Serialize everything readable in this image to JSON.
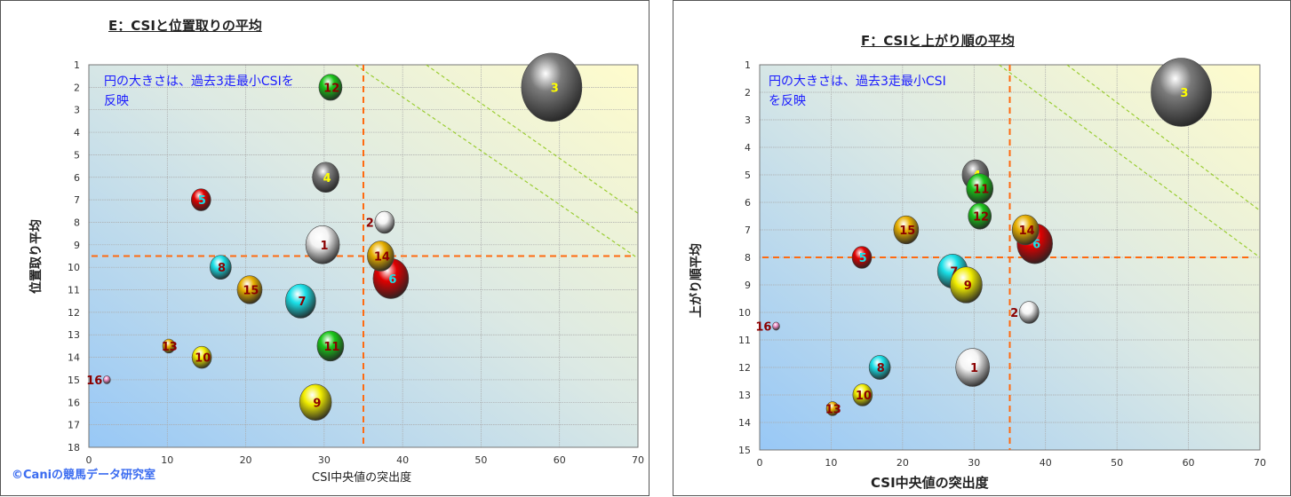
{
  "copyright": "©Caniの競馬データ研究室",
  "colors": {
    "white": "#f4f4f4",
    "gray": "#7a7a7a",
    "red": "#e00000",
    "cyan": "#19e0e8",
    "yellow": "#f2ee00",
    "green": "#19c619",
    "orange": "#e8b000",
    "pink": "#f090c8",
    "threshold": "#ff6a10",
    "diagonal": "#9acd32",
    "note": "#1a1aff"
  },
  "chart_data": [
    {
      "type": "scatter",
      "title": "E：CSIと位置取りの平均",
      "xlabel": "CSI中央値の突出度",
      "ylabel": "位置取り平均",
      "note_line1": "円の大きさは、過去3走最小CSIを",
      "note_line2": "反映",
      "xlim": [
        0,
        70
      ],
      "ylim": [
        1,
        18
      ],
      "y_reversed": true,
      "xticks": [
        "0",
        "10",
        "20",
        "30",
        "40",
        "50",
        "60",
        "70"
      ],
      "yticks": [
        "1",
        "2",
        "3",
        "4",
        "5",
        "6",
        "7",
        "8",
        "9",
        "10",
        "11",
        "12",
        "13",
        "14",
        "15",
        "16",
        "17",
        "18"
      ],
      "grid": true,
      "threshold_x": 35,
      "threshold_y": 9.5,
      "diagonals": [
        [
          [
            34,
            1
          ],
          [
            70,
            9.6
          ]
        ],
        [
          [
            43,
            1
          ],
          [
            70,
            7.6
          ]
        ]
      ],
      "points": [
        {
          "label": "1",
          "x": 29.8,
          "y": 9,
          "size": 19,
          "color": "white",
          "label_color": "#8b0000"
        },
        {
          "label": "2",
          "x": 37.7,
          "y": 8,
          "size": 11,
          "color": "white",
          "label_color": "#8b0000",
          "label_side": "left"
        },
        {
          "label": "3",
          "x": 59,
          "y": 2,
          "size": 34,
          "color": "gray",
          "label_color": "#ffff00"
        },
        {
          "label": "4",
          "x": 30.2,
          "y": 6,
          "size": 15,
          "color": "gray",
          "label_color": "#ffff00"
        },
        {
          "label": "5",
          "x": 14.3,
          "y": 7,
          "size": 11,
          "color": "red",
          "label_color": "#19e0e8"
        },
        {
          "label": "6",
          "x": 38.5,
          "y": 10.5,
          "size": 20,
          "color": "red",
          "label_color": "#19e0e8"
        },
        {
          "label": "7",
          "x": 27,
          "y": 11.5,
          "size": 17,
          "color": "cyan",
          "label_color": "#8b0000"
        },
        {
          "label": "8",
          "x": 16.8,
          "y": 10,
          "size": 12,
          "color": "cyan",
          "label_color": "#8b0000"
        },
        {
          "label": "9",
          "x": 28.9,
          "y": 16,
          "size": 18,
          "color": "yellow",
          "label_color": "#8b0000"
        },
        {
          "label": "10",
          "x": 14.4,
          "y": 14,
          "size": 11,
          "color": "yellow",
          "label_color": "#8b0000"
        },
        {
          "label": "11",
          "x": 30.8,
          "y": 13.5,
          "size": 15,
          "color": "green",
          "label_color": "#8b0000"
        },
        {
          "label": "12",
          "x": 30.8,
          "y": 2,
          "size": 13,
          "color": "green",
          "label_color": "#8b0000"
        },
        {
          "label": "13",
          "x": 10.2,
          "y": 13.5,
          "size": 7,
          "color": "orange",
          "label_color": "#8b0000"
        },
        {
          "label": "14",
          "x": 37.2,
          "y": 9.5,
          "size": 15,
          "color": "orange",
          "label_color": "#8b0000"
        },
        {
          "label": "15",
          "x": 20.5,
          "y": 11,
          "size": 14,
          "color": "orange",
          "label_color": "#8b0000"
        },
        {
          "label": "16",
          "x": 2.3,
          "y": 15,
          "size": 4,
          "color": "pink",
          "label_color": "#8b0000",
          "label_side": "left"
        }
      ]
    },
    {
      "type": "scatter",
      "title": "F：CSIと上がり順の平均",
      "xlabel": "CSI中央値の突出度",
      "ylabel": "上がり順平均",
      "note_line1": "円の大きさは、過去3走最小CSI",
      "note_line2": "を反映",
      "xlim": [
        0,
        70
      ],
      "ylim": [
        1,
        15
      ],
      "y_reversed": true,
      "xticks": [
        "0",
        "10",
        "20",
        "30",
        "40",
        "50",
        "60",
        "70"
      ],
      "yticks": [
        "1",
        "2",
        "3",
        "4",
        "5",
        "6",
        "7",
        "8",
        "9",
        "10",
        "11",
        "12",
        "13",
        "14",
        "15"
      ],
      "grid": true,
      "threshold_x": 35,
      "threshold_y": 8,
      "diagonals": [
        [
          [
            33.5,
            1
          ],
          [
            70,
            8
          ]
        ],
        [
          [
            43,
            1
          ],
          [
            70,
            6.3
          ]
        ]
      ],
      "points": [
        {
          "label": "1",
          "x": 29.8,
          "y": 12,
          "size": 19,
          "color": "white",
          "label_color": "#8b0000"
        },
        {
          "label": "2",
          "x": 37.7,
          "y": 10,
          "size": 11,
          "color": "white",
          "label_color": "#8b0000",
          "label_side": "left"
        },
        {
          "label": "3",
          "x": 59,
          "y": 2,
          "size": 34,
          "color": "gray",
          "label_color": "#ffff00"
        },
        {
          "label": "4",
          "x": 30.2,
          "y": 5,
          "size": 15,
          "color": "gray",
          "label_color": "#ffff00"
        },
        {
          "label": "5",
          "x": 14.3,
          "y": 8,
          "size": 11,
          "color": "red",
          "label_color": "#19e0e8"
        },
        {
          "label": "6",
          "x": 38.5,
          "y": 7.5,
          "size": 20,
          "color": "red",
          "label_color": "#19e0e8"
        },
        {
          "label": "7",
          "x": 27,
          "y": 8.5,
          "size": 17,
          "color": "cyan",
          "label_color": "#8b0000"
        },
        {
          "label": "8",
          "x": 16.8,
          "y": 12,
          "size": 12,
          "color": "cyan",
          "label_color": "#8b0000"
        },
        {
          "label": "9",
          "x": 28.9,
          "y": 9,
          "size": 18,
          "color": "yellow",
          "label_color": "#8b0000"
        },
        {
          "label": "10",
          "x": 14.4,
          "y": 13,
          "size": 11,
          "color": "yellow",
          "label_color": "#8b0000"
        },
        {
          "label": "11",
          "x": 30.8,
          "y": 5.5,
          "size": 15,
          "color": "green",
          "label_color": "#8b0000"
        },
        {
          "label": "12",
          "x": 30.8,
          "y": 6.5,
          "size": 13,
          "color": "green",
          "label_color": "#8b0000"
        },
        {
          "label": "13",
          "x": 10.2,
          "y": 13.5,
          "size": 7,
          "color": "orange",
          "label_color": "#8b0000"
        },
        {
          "label": "14",
          "x": 37.2,
          "y": 7,
          "size": 15,
          "color": "orange",
          "label_color": "#8b0000"
        },
        {
          "label": "15",
          "x": 20.5,
          "y": 7,
          "size": 14,
          "color": "orange",
          "label_color": "#8b0000"
        },
        {
          "label": "16",
          "x": 2.3,
          "y": 10.5,
          "size": 4,
          "color": "pink",
          "label_color": "#8b0000",
          "label_side": "left"
        }
      ]
    }
  ]
}
